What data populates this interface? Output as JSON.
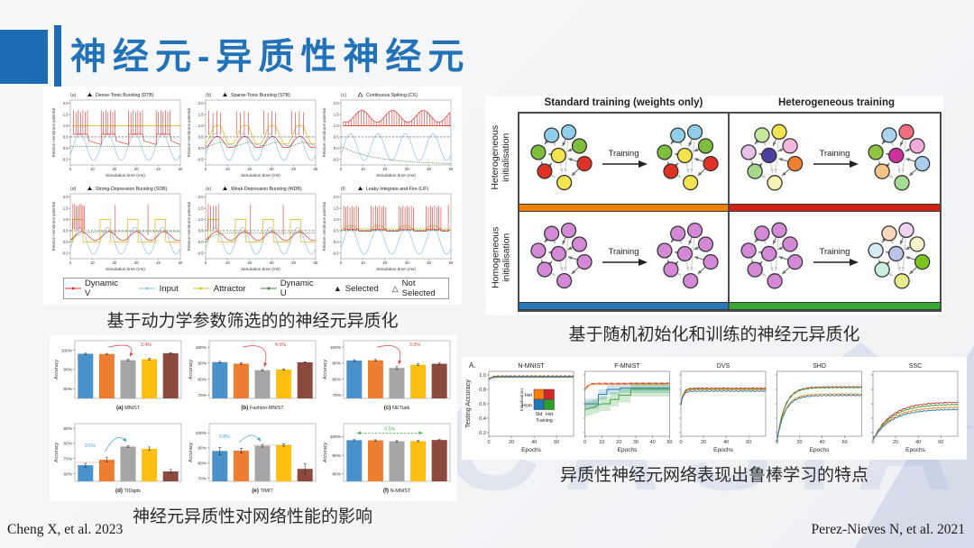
{
  "slide": {
    "title": "神经元-异质性神经元",
    "accent_color": "#2272b9",
    "watermark_text": "CASIA",
    "citations": {
      "left": "Cheng X, et al. 2023",
      "right": "Perez-Nieves N, et al. 2021"
    }
  },
  "captions": {
    "fig1": "基于动力学参数筛选的的神经元异质化",
    "fig2": "神经元异质性对网络性能的影响",
    "fig3": "基于随机初始化和训练的神经元异质化",
    "fig4": "异质性神经元网络表现出鲁棒学习的特点"
  },
  "chart_data": [
    {
      "id": "neuron-dynamics",
      "type": "line",
      "ylabel": "Relative membrane potential",
      "xlabel": "Simulation time (ms)",
      "yticks": [
        2.0,
        1.5,
        1.0,
        0.5,
        0.0,
        -0.5
      ],
      "xticks": [
        0,
        10,
        20,
        30,
        40,
        50
      ],
      "xlim": [
        0,
        50
      ],
      "panels": [
        {
          "letter": "(a)",
          "marker": "filled",
          "name": "Dense-Tonic Bursting (DTB)",
          "pattern": "DTB"
        },
        {
          "letter": "(b)",
          "marker": "filled",
          "name": "Sparse-Tonic Bursting (STB)",
          "pattern": "STB"
        },
        {
          "letter": "(c)",
          "marker": "hollow",
          "name": "Continuous Spiking (CS)",
          "pattern": "CS"
        },
        {
          "letter": "(d)",
          "marker": "filled",
          "name": "Strong-Depression Bursting (SDB)",
          "pattern": "SDB"
        },
        {
          "letter": "(e)",
          "marker": "filled",
          "name": "Weak-Depression Bursting (WDB)",
          "pattern": "WDB"
        },
        {
          "letter": "(f)",
          "marker": "filled",
          "name": "Leaky Integrate-and-Fire (LIF)",
          "pattern": "LIF"
        }
      ],
      "legend": [
        {
          "label": "Dynamic V",
          "color": "#e0312a"
        },
        {
          "label": "Input",
          "color": "#8fc3e4"
        },
        {
          "label": "Attractor",
          "color": "#e3bc2a"
        },
        {
          "label": "Dynamic U",
          "color": "#3d8c40"
        },
        {
          "label": "Selected",
          "marker": "filled"
        },
        {
          "label": "Not Selected",
          "marker": "hollow"
        }
      ]
    },
    {
      "id": "accuracy-bars",
      "type": "bar",
      "ylabel": "Accuracy",
      "bar_colors": [
        "#4a90c9",
        "#ed7d31",
        "#a6a6a6",
        "#fdc010",
        "#8c4a3f"
      ],
      "panels": [
        {
          "label": "(a)",
          "dataset": "MNIST",
          "yticks": [
            100,
            90,
            80
          ],
          "ylim": [
            75,
            105
          ],
          "values": [
            98.2,
            98.1,
            94.9,
            95.4,
            98.5
          ],
          "err": [
            0.3,
            0.3,
            0.5,
            0.5,
            0.3
          ],
          "annotation": "3.4%",
          "ann_color": "#d94040",
          "ann_type": "down"
        },
        {
          "label": "(b)",
          "dataset": "Fashion-MNIST",
          "yticks": [
            100,
            90,
            80,
            70
          ],
          "ylim": [
            68,
            104
          ],
          "values": [
            90.6,
            89.7,
            85.6,
            86.0,
            90.5
          ],
          "err": [
            0.5,
            0.6,
            0.5,
            0.5,
            0.4
          ],
          "annotation": "4.5%",
          "ann_color": "#d94040",
          "ann_type": "down"
        },
        {
          "label": "(c)",
          "dataset": "NETtalk",
          "yticks": [
            100,
            90,
            80,
            70
          ],
          "ylim": [
            68,
            104
          ],
          "values": [
            91.6,
            91.8,
            87.0,
            89.0,
            89.6
          ],
          "err": [
            0.5,
            0.5,
            0.8,
            0.6,
            0.6
          ],
          "annotation": "3.3%",
          "ann_color": "#d94040",
          "ann_type": "down"
        },
        {
          "label": "(d)",
          "dataset": "TIDigits",
          "yticks": [
            90,
            80,
            70,
            60
          ],
          "ylim": [
            55,
            93
          ],
          "values": [
            65.6,
            69.2,
            77.9,
            76.4,
            61.5
          ],
          "err": [
            1.2,
            1.4,
            0.7,
            1.2,
            1.4
          ],
          "annotation": "9.5%",
          "ann_color": "#3fa0d0",
          "ann_type": "up",
          "refline": {
            "value": 67.5,
            "from": 0,
            "to": 1
          }
        },
        {
          "label": "(e)",
          "dataset": "TIMIT",
          "yticks": [
            100,
            90,
            80,
            70
          ],
          "ylim": [
            68,
            106
          ],
          "values": [
            88.0,
            88.2,
            91.4,
            91.9,
            76.2
          ],
          "err": [
            2.4,
            1.6,
            0.9,
            0.8,
            3.4
          ],
          "annotation": "3.8%",
          "ann_color": "#3fa0d0",
          "ann_type": "up",
          "refline": {
            "value": 91.8,
            "from": 2,
            "to": 3
          }
        },
        {
          "label": "(f)",
          "dataset": "N-MNIST",
          "yticks": [
            100,
            90,
            80
          ],
          "ylim": [
            76,
            107
          ],
          "values": [
            98.1,
            98.0,
            97.5,
            97.6,
            98.2
          ],
          "err": [
            0.3,
            0.3,
            0.4,
            0.3,
            0.3
          ],
          "annotation": "0.5%",
          "ann_color": "#47b04f",
          "ann_type": "span"
        }
      ]
    },
    {
      "id": "network-training",
      "type": "diagram",
      "col_headers": [
        "Standard training (weights only)",
        "Heterogeneous training"
      ],
      "row_labels": [
        "Heterogeneous initialisation",
        "Homogeneous initialisation"
      ],
      "arrow_label": "Training",
      "row_bar_colors": [
        [
          "#ef8200",
          "#cf2318"
        ],
        [
          "#2878b8",
          "#36a935"
        ]
      ],
      "cells": [
        {
          "before": [
            "#8fcdea",
            "#8fcdea",
            "#7dbf3c",
            "#f2e34f",
            "#7dbf3c",
            "#e03127",
            "#e03127",
            "#f2e34f"
          ],
          "after": [
            "#8fcdea",
            "#8fcdea",
            "#7dbf3c",
            "#f2e34f",
            "#7dbf3c",
            "#e03127",
            "#e03127",
            "#f2e34f"
          ]
        },
        {
          "before": [
            "#c4e79e",
            "#f2e34f",
            "#e8c0e8",
            "#4b3fa0",
            "#f2b8dc",
            "#f08030",
            "#a8d88a",
            "#f6f2b4"
          ],
          "after": [
            "#a8d4f0",
            "#f26d7d",
            "#8fc440",
            "#cc2f9b",
            "#f0aadc",
            "#aaccee",
            "#f6c488",
            "#a4dc94"
          ]
        },
        {
          "before": [
            "#d389d6",
            "#d389d6",
            "#d389d6",
            "#d389d6",
            "#d389d6",
            "#d389d6",
            "#d389d6",
            "#d389d6"
          ],
          "after": [
            "#d389d6",
            "#d389d6",
            "#d389d6",
            "#d389d6",
            "#d389d6",
            "#d389d6",
            "#d389d6",
            "#d389d6"
          ]
        },
        {
          "before": [
            "#d389d6",
            "#d389d6",
            "#d389d6",
            "#d389d6",
            "#d389d6",
            "#d389d6",
            "#d389d6",
            "#d389d6"
          ],
          "after": [
            "#f8d8b8",
            "#f0d4f0",
            "#d8ecf8",
            "#bcc4ec",
            "#f8f4c8",
            "#7ac520",
            "#cceedd",
            "#e4ee88"
          ]
        }
      ]
    },
    {
      "id": "learning-curves",
      "type": "line",
      "panel_label": "A.",
      "ylabel": "Testing Accuracy",
      "xlabel": "Epochs",
      "yticks": [
        1.0,
        0.8,
        0.6,
        0.4,
        0.2
      ],
      "legend": {
        "rows": [
          "Het",
          "Hom"
        ],
        "cols": [
          "Std",
          "Het"
        ],
        "row_axis": "Initialisation",
        "col_axis": "Training",
        "grid": [
          [
            "#ff7f0e",
            "#d62728"
          ],
          [
            "#1f77b4",
            "#2ca02c"
          ]
        ]
      },
      "panels": [
        {
          "title": "N-MNIST",
          "xticks": [
            0,
            20,
            40,
            60
          ],
          "xmax": 75,
          "start": 0.93,
          "tau": 2,
          "series": [
            {
              "color": "#d62728",
              "final": 0.985
            },
            {
              "color": "#2ca02c",
              "final": 0.978
            },
            {
              "color": "#ff7f0e",
              "final": 0.974
            },
            {
              "color": "#1f77b4",
              "final": 0.971
            }
          ],
          "legend": true
        },
        {
          "title": "F-MNIST",
          "xticks": [
            0,
            10,
            20,
            30,
            40,
            50
          ],
          "xmax": 50,
          "start": 0.78,
          "tau": 1.5,
          "series": [
            {
              "color": "#d62728",
              "final": 0.882
            },
            {
              "color": "#ff7f0e",
              "final": 0.872
            }
          ],
          "steps": [
            {
              "color": "#1f77b4",
              "band": 0.07,
              "pts": [
                [
                  0,
                  0.6
                ],
                [
                  8,
                  0.6
                ],
                [
                  8,
                  0.73
                ],
                [
                  13,
                  0.73
                ],
                [
                  13,
                  0.8
                ],
                [
                  21,
                  0.8
                ],
                [
                  21,
                  0.82
                ],
                [
                  50,
                  0.82
                ]
              ]
            },
            {
              "color": "#2ca02c",
              "band": 0.1,
              "pts": [
                [
                  0,
                  0.52
                ],
                [
                  5,
                  0.55
                ],
                [
                  10,
                  0.6
                ],
                [
                  15,
                  0.6
                ],
                [
                  15,
                  0.66
                ],
                [
                  20,
                  0.66
                ],
                [
                  20,
                  0.72
                ],
                [
                  27,
                  0.72
                ],
                [
                  27,
                  0.8
                ],
                [
                  50,
                  0.8
                ]
              ]
            }
          ]
        },
        {
          "title": "DVS",
          "xticks": [
            0,
            20,
            40,
            60
          ],
          "xmax": 75,
          "start": 0.58,
          "tau": 2,
          "series": [
            {
              "color": "#d62728",
              "final": 0.815
            },
            {
              "color": "#2ca02c",
              "final": 0.805
            },
            {
              "color": "#ff7f0e",
              "final": 0.795
            },
            {
              "color": "#1f77b4",
              "final": 0.775
            }
          ]
        },
        {
          "title": "SHD",
          "xticks": [
            0,
            20,
            40,
            60
          ],
          "xmax": 75,
          "start": 0.08,
          "tau": 7,
          "series": [
            {
              "color": "#d62728",
              "final": 0.835
            },
            {
              "color": "#2ca02c",
              "final": 0.825
            },
            {
              "color": "#ff7f0e",
              "final": 0.735
            },
            {
              "color": "#1f77b4",
              "final": 0.715
            }
          ]
        },
        {
          "title": "SSC",
          "xticks": [
            0,
            20,
            40,
            60
          ],
          "xmax": 75,
          "start": 0.1,
          "tau": 16,
          "series": [
            {
              "color": "#d62728",
              "final": 0.625
            },
            {
              "color": "#2ca02c",
              "final": 0.595
            },
            {
              "color": "#ff7f0e",
              "final": 0.555
            },
            {
              "color": "#1f77b4",
              "final": 0.525
            }
          ]
        }
      ]
    }
  ]
}
